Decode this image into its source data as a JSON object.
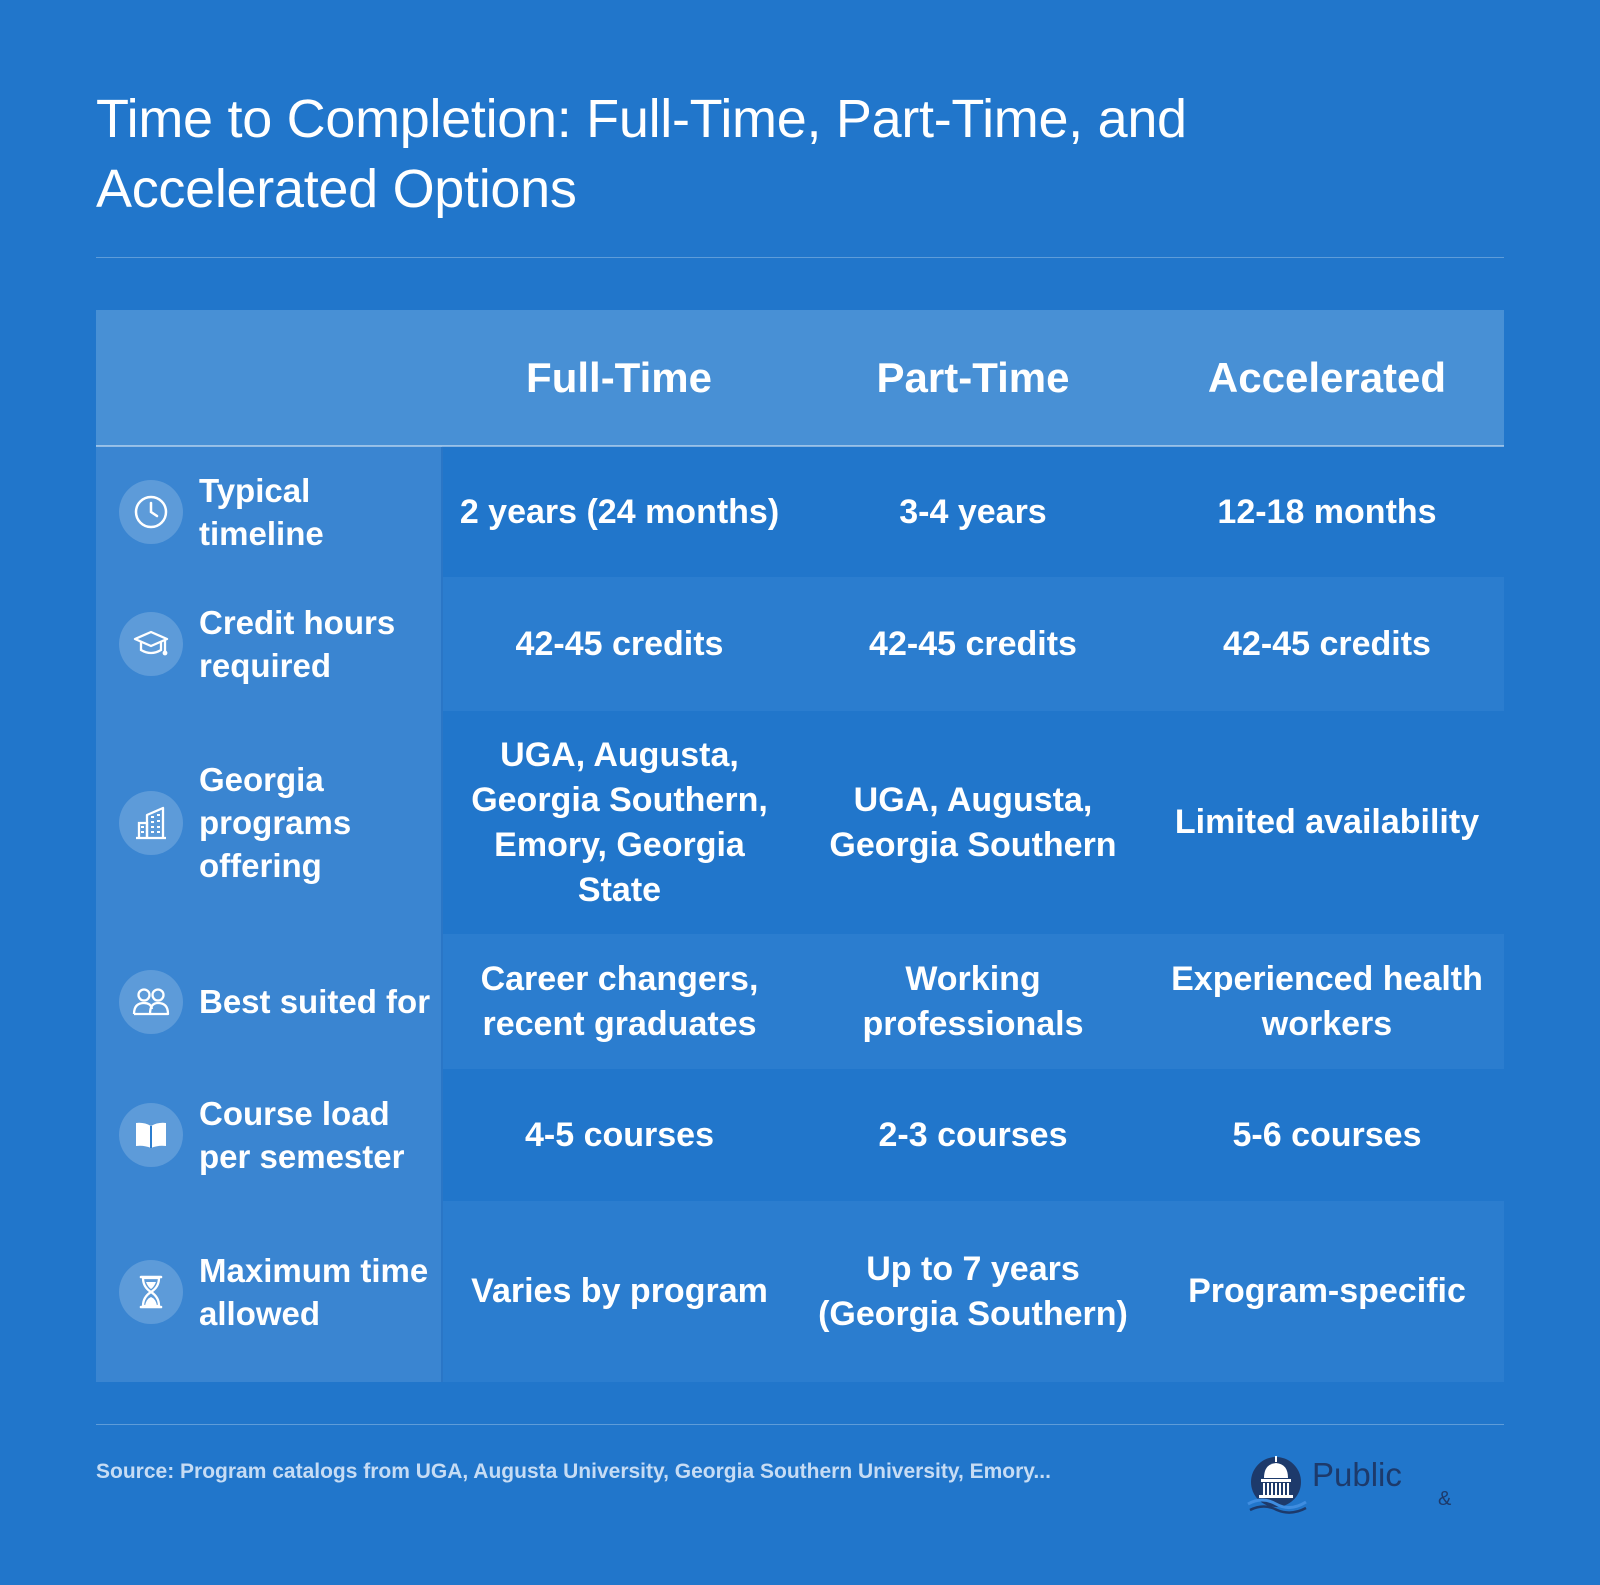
{
  "title": "Time to Completion: Full-Time, Part-Time, and Accelerated Options",
  "table": {
    "columns": [
      "",
      "Full-Time",
      "Part-Time",
      "Accelerated"
    ],
    "rows": [
      {
        "icon": "clock-icon",
        "label": "Typical timeline",
        "values": [
          "2 years (24 months)",
          "3-4 years",
          "12-18 months"
        ]
      },
      {
        "icon": "graduation-cap-icon",
        "label": "Credit hours required",
        "values": [
          "42-45 credits",
          "42-45 credits",
          "42-45 credits"
        ]
      },
      {
        "icon": "building-icon",
        "label": "Georgia programs offering",
        "values": [
          "UGA, Augusta, Georgia Southern, Emory, Georgia State",
          "UGA, Augusta, Georgia Southern",
          "Limited availability"
        ]
      },
      {
        "icon": "people-icon",
        "label": "Best suited for",
        "values": [
          "Career changers, recent graduates",
          "Working professionals",
          "Experienced health workers"
        ]
      },
      {
        "icon": "book-icon",
        "label": "Course load per semester",
        "values": [
          "4-5 courses",
          "2-3 courses",
          "5-6 courses"
        ]
      },
      {
        "icon": "hourglass-icon",
        "label": "Maximum time allowed",
        "values": [
          "Varies by program",
          "Up to 7 years (Georgia Southern)",
          "Program-specific"
        ]
      }
    ]
  },
  "source": "Source: Program catalogs from UGA, Augusta University, Georgia Southern University, Emory...",
  "logo": {
    "word": "Public",
    "amp": "&"
  },
  "colors": {
    "background": "#2176cb",
    "header_band": "#4890d5",
    "label_column": "#3a85d1",
    "logo_navy": "#1d3a6b"
  }
}
